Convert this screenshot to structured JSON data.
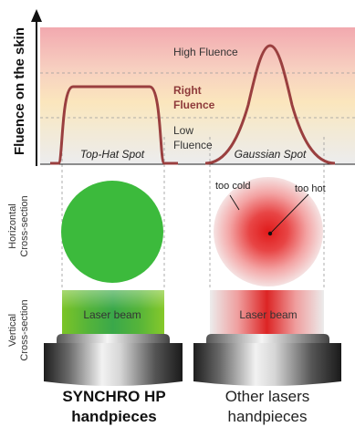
{
  "y_axis_title": "Fluence on the skin",
  "fluence_bands": {
    "high": "High Fluence",
    "right_line1": "Right",
    "right_line2": "Fluence",
    "low_line1": "Low",
    "low_line2": "Fluence"
  },
  "spots": {
    "top_hat": "Top-Hat Spot",
    "gaussian": "Gaussian Spot"
  },
  "row_labels": {
    "horizontal_line1": "Horizontal",
    "horizontal_line2": "Cross-section",
    "vertical_line1": "Vertical",
    "vertical_line2": "Cross-section"
  },
  "annotations": {
    "too_cold": "too cold",
    "too_hot": "too hot"
  },
  "beam_labels": {
    "left": "Laser beam",
    "right": "Laser beam"
  },
  "handpieces": {
    "synchro_line1": "SYNCHRO HP",
    "synchro_line2": "handpieces",
    "other_line1": "Other lasers",
    "other_line2": "handpieces"
  },
  "colors": {
    "band_high": "#f2b8bc",
    "band_right": "#fbe4ba",
    "band_low": "#e8e8ea",
    "curve": "#9a3f3f",
    "right_fluence_text": "#8e3a3a",
    "green_spot": "#3cba3c",
    "red_spot": "#e53030"
  }
}
